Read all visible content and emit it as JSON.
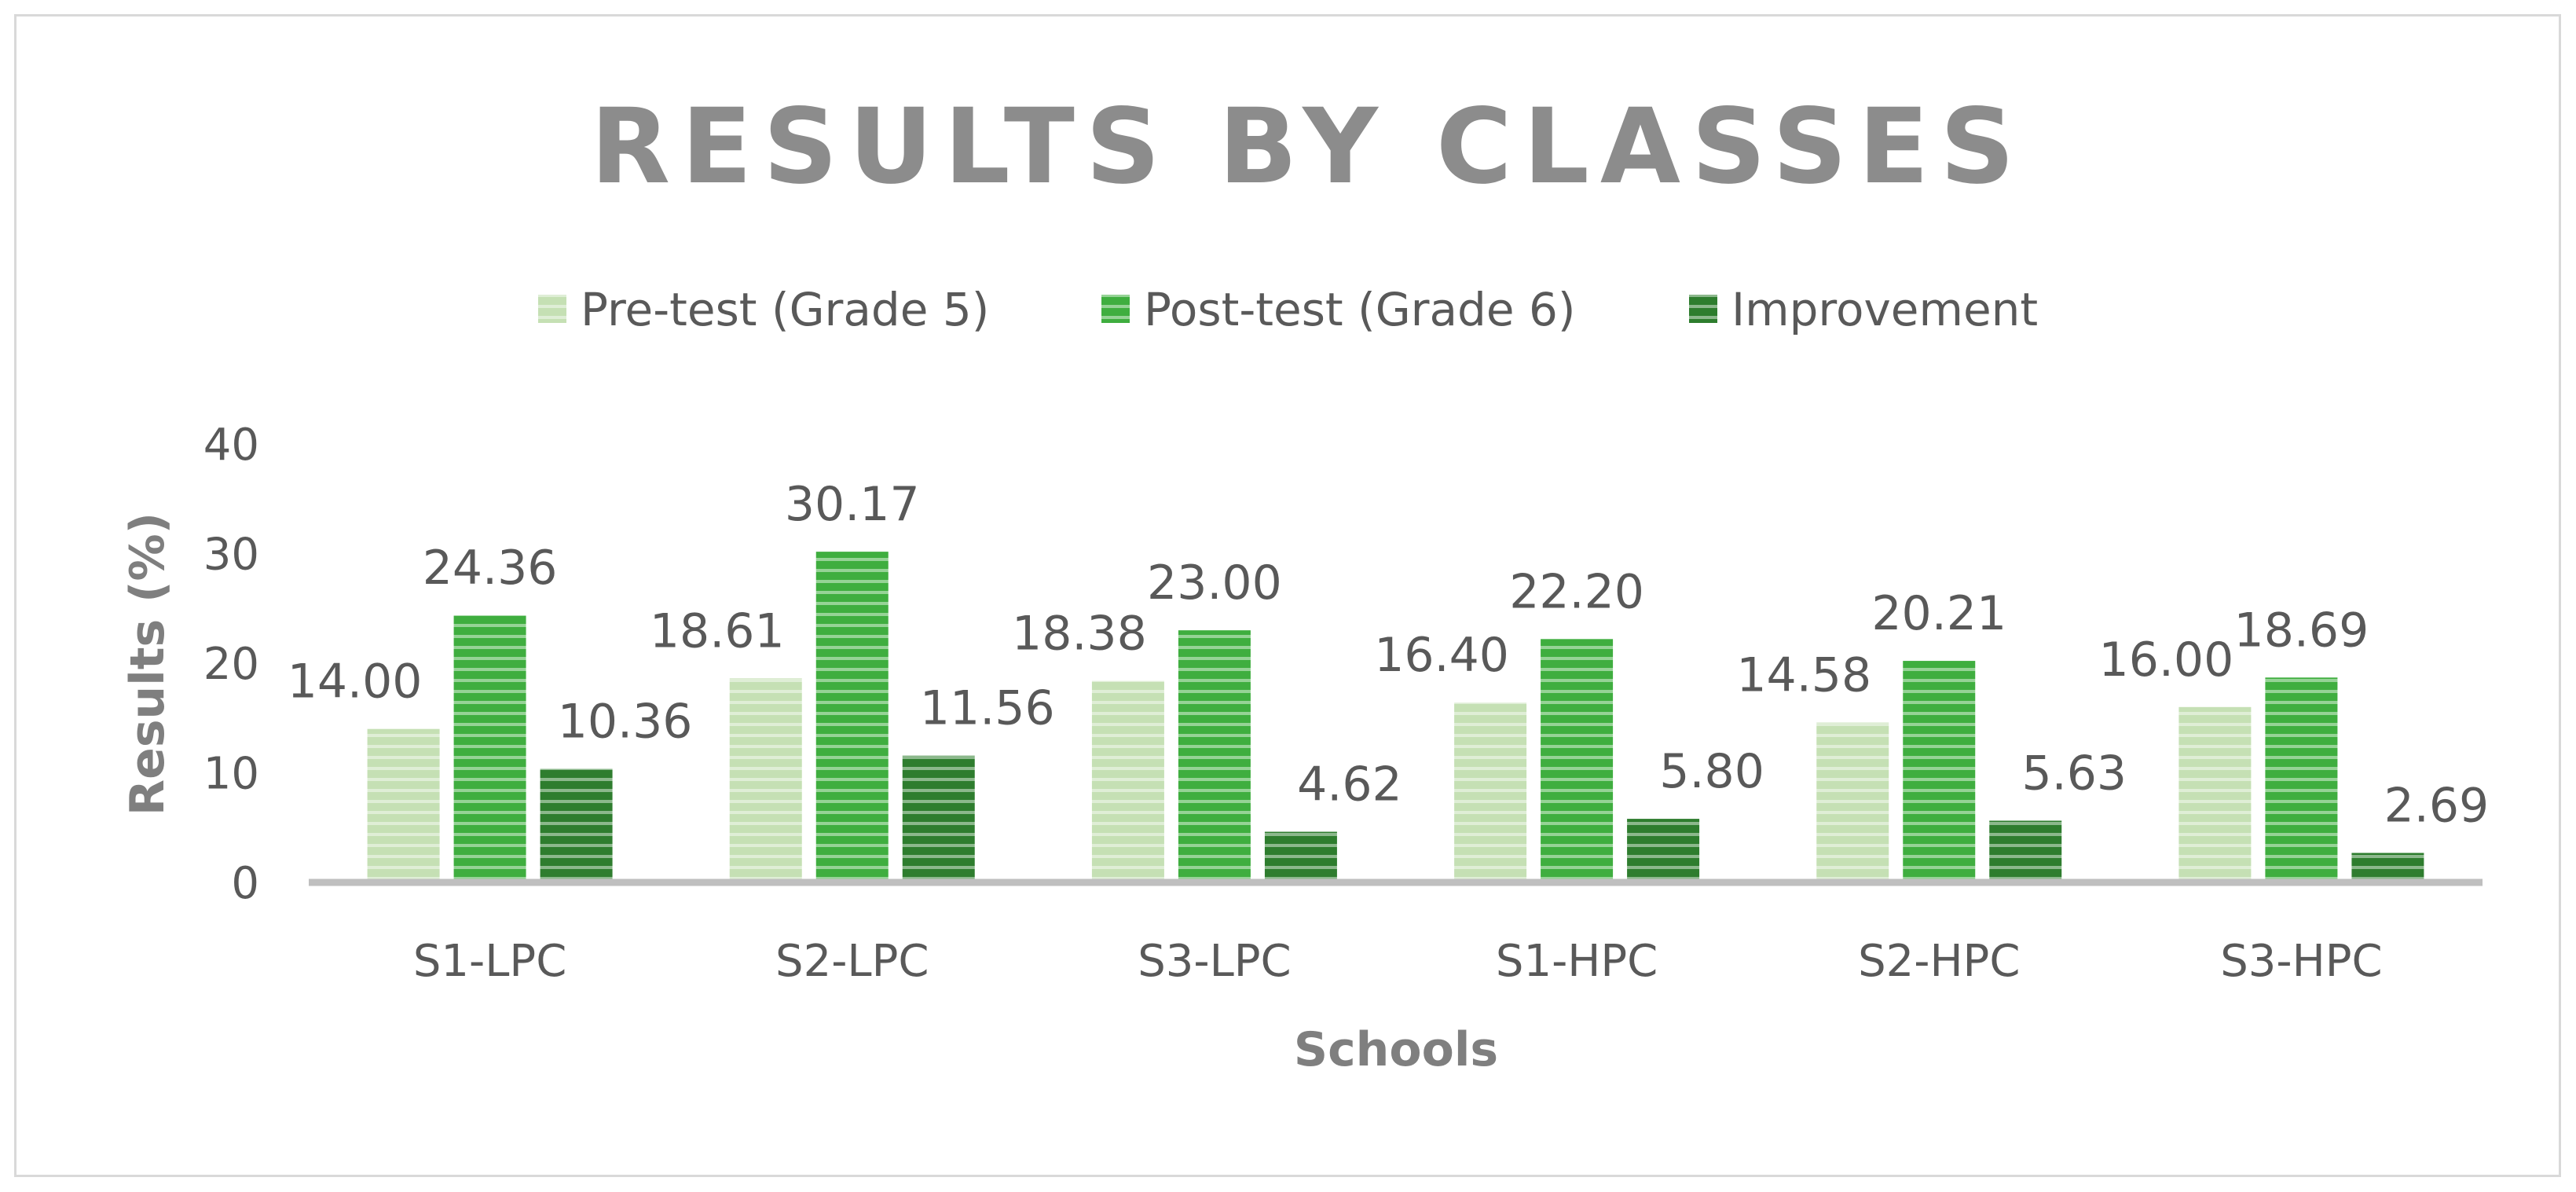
{
  "chart_data": {
    "type": "bar",
    "title": "RESULTS BY CLASSES",
    "xlabel": "Schools",
    "ylabel": "Results (%)",
    "categories": [
      "S1-LPC",
      "S2-LPC",
      "S3-LPC",
      "S1-HPC",
      "S2-HPC",
      "S3-HPC"
    ],
    "series": [
      {
        "name": "Pre-test (Grade 5)",
        "values": [
          14.0,
          18.61,
          18.38,
          16.4,
          14.58,
          16.0
        ],
        "color": "#c5e0b4"
      },
      {
        "name": "Post-test (Grade 6)",
        "values": [
          24.36,
          30.17,
          23.0,
          22.2,
          20.21,
          18.69
        ],
        "color": "#3fae3f"
      },
      {
        "name": "Improvement",
        "values": [
          10.36,
          11.56,
          4.62,
          5.8,
          5.63,
          2.69
        ],
        "color": "#2e7d2e"
      }
    ],
    "ylim": [
      0,
      40
    ],
    "yticks": [
      0,
      10,
      20,
      30,
      40
    ],
    "grid": false,
    "legend_position": "top",
    "bar_pattern": "horizontal-stripes"
  }
}
